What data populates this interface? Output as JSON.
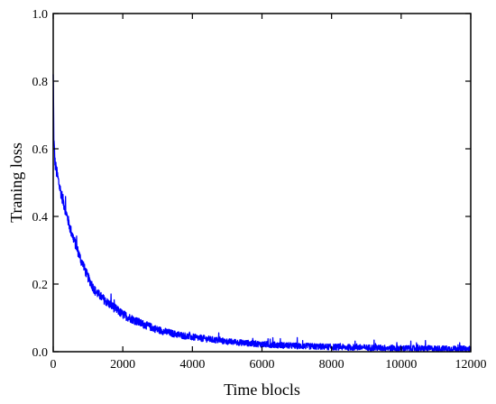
{
  "chart_data": {
    "type": "line",
    "title": "",
    "xlabel": "Time blocls",
    "ylabel": "Traning loss",
    "xlim": [
      0,
      12000
    ],
    "ylim": [
      0,
      1.0
    ],
    "x_ticks": [
      0,
      2000,
      4000,
      6000,
      8000,
      10000,
      12000
    ],
    "x_tick_labels": [
      "0",
      "2000",
      "4000",
      "6000",
      "8000",
      "10000",
      "12000"
    ],
    "y_ticks": [
      0.0,
      0.2,
      0.4,
      0.6,
      0.8,
      1.0
    ],
    "y_tick_labels": [
      "0.0",
      "0.2",
      "0.4",
      "0.6",
      "0.8",
      "1.0"
    ],
    "grid": false,
    "legend": "none",
    "series": [
      {
        "color": "#0000ff",
        "x": [
          0,
          20,
          50,
          100,
          200,
          300,
          400,
          500,
          600,
          800,
          1000,
          1200,
          1500,
          2000,
          2500,
          3000,
          3500,
          4000,
          5000,
          6000,
          7000,
          8000,
          9000,
          10000,
          11000,
          12000
        ],
        "y": [
          0.82,
          0.62,
          0.56,
          0.53,
          0.48,
          0.44,
          0.4,
          0.36,
          0.33,
          0.27,
          0.22,
          0.18,
          0.15,
          0.11,
          0.085,
          0.065,
          0.052,
          0.043,
          0.03,
          0.022,
          0.017,
          0.014,
          0.012,
          0.01,
          0.009,
          0.008
        ],
        "noise_amplitude": [
          0.0,
          0.03,
          0.02,
          0.02,
          0.018,
          0.018,
          0.016,
          0.016,
          0.015,
          0.015,
          0.014,
          0.014,
          0.013,
          0.013,
          0.012,
          0.011,
          0.01,
          0.01,
          0.009,
          0.009,
          0.009,
          0.009,
          0.009,
          0.009,
          0.009,
          0.009
        ]
      }
    ]
  }
}
